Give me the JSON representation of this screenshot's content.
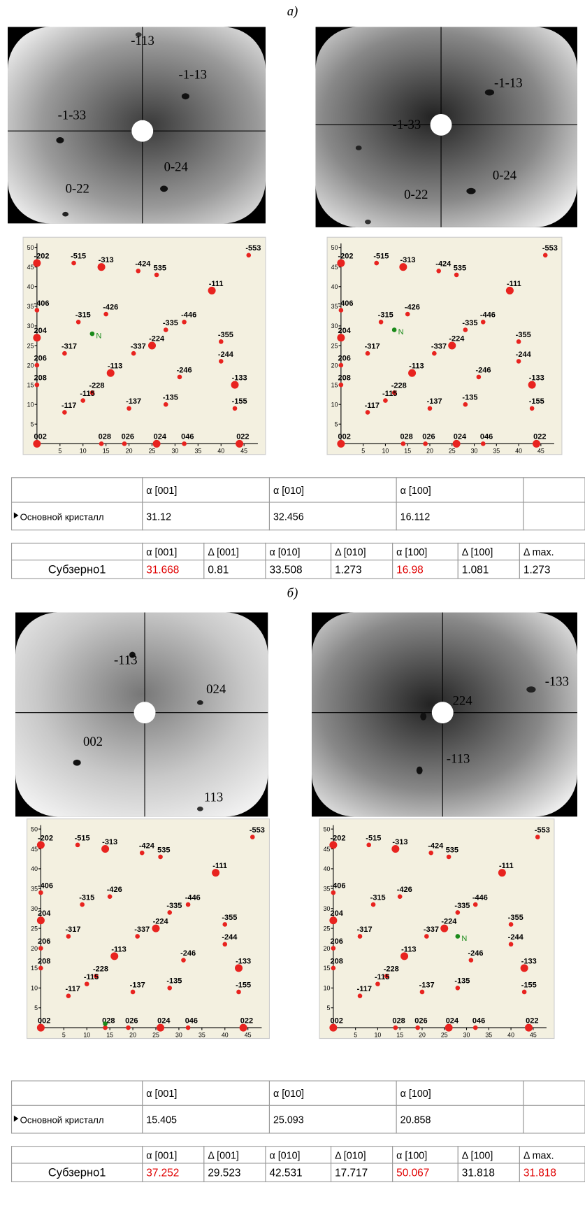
{
  "panels": [
    {
      "label": "а)",
      "patterns": [
        {
          "labels": [
            "-113",
            "-1-13",
            "-1-33",
            "0-24",
            "0-22"
          ]
        },
        {
          "labels": [
            "-1-13",
            "-1-33",
            "0-24",
            "0-22"
          ]
        }
      ],
      "plots": [
        {
          "marker": {
            "label": "N",
            "x": 12,
            "y": 28
          }
        },
        {
          "marker": {
            "label": "N",
            "x": 12,
            "y": 29
          }
        }
      ],
      "crystal_table": {
        "headers": [
          "α [001]",
          "α [010]",
          "α [100]"
        ],
        "row_label": "Основной кристалл",
        "values": [
          31.12,
          32.456,
          16.112
        ]
      },
      "subgrain_table": {
        "headers": [
          "α [001]",
          "Δ [001]",
          "α [010]",
          "Δ [010]",
          "α [100]",
          "Δ [100]",
          "Δ max."
        ],
        "row_label": "Субзерно1",
        "values": [
          31.668,
          0.81,
          33.508,
          1.273,
          16.98,
          1.081,
          1.273
        ],
        "colors": [
          "#e00000",
          "#000000",
          "#000000",
          "#000000",
          "#e00000",
          "#000000",
          "#000000"
        ]
      }
    },
    {
      "label": "б)",
      "patterns": [
        {
          "labels": [
            "-113",
            "024",
            "002",
            "113"
          ]
        },
        {
          "labels": [
            "-133",
            "224",
            "-113"
          ]
        }
      ],
      "plots": [
        {
          "marker": {
            "x": 14,
            "y": 1
          }
        },
        {
          "marker": {
            "label": "N",
            "x": 28,
            "y": 23
          }
        }
      ],
      "crystal_table": {
        "headers": [
          "α [001]",
          "α [010]",
          "α [100]"
        ],
        "row_label": "Основной кристалл",
        "values": [
          15.405,
          25.093,
          20.858
        ]
      },
      "subgrain_table": {
        "headers": [
          "α [001]",
          "Δ [001]",
          "α [010]",
          "Δ [010]",
          "α [100]",
          "Δ [100]",
          "Δ max."
        ],
        "row_label": "Субзерно1",
        "values": [
          37.252,
          29.523,
          42.531,
          17.717,
          50.067,
          31.818,
          31.818
        ],
        "colors": [
          "#e00000",
          "#000000",
          "#000000",
          "#000000",
          "#e00000",
          "#000000",
          "#e00000"
        ]
      }
    }
  ],
  "index_plot": {
    "xlim": [
      0,
      48
    ],
    "ylim": [
      0,
      51
    ],
    "xticks": [
      5,
      10,
      15,
      20,
      25,
      30,
      35,
      40,
      45
    ],
    "yticks": [
      5,
      10,
      15,
      20,
      25,
      30,
      35,
      40,
      45,
      50
    ],
    "point_color": "#e8231f",
    "marker_color": "#1a8a1a",
    "points": [
      {
        "label": "-202",
        "x": 0,
        "y": 46,
        "big": true
      },
      {
        "label": "-515",
        "x": 8,
        "y": 46
      },
      {
        "label": "-313",
        "x": 14,
        "y": 45,
        "big": true
      },
      {
        "label": "-424",
        "x": 22,
        "y": 44
      },
      {
        "label": "535",
        "x": 26,
        "y": 43
      },
      {
        "label": "-553",
        "x": 46,
        "y": 48
      },
      {
        "label": "-111",
        "x": 38,
        "y": 39,
        "big": true
      },
      {
        "label": "-406",
        "x": 0,
        "y": 34
      },
      {
        "label": "-426",
        "x": 15,
        "y": 33
      },
      {
        "label": "-315",
        "x": 9,
        "y": 31
      },
      {
        "label": "-446",
        "x": 32,
        "y": 31
      },
      {
        "label": "-335",
        "x": 28,
        "y": 29
      },
      {
        "label": "204",
        "x": 0,
        "y": 27,
        "big": true
      },
      {
        "label": "-224",
        "x": 25,
        "y": 25,
        "big": true
      },
      {
        "label": "-355",
        "x": 40,
        "y": 26
      },
      {
        "label": "-317",
        "x": 6,
        "y": 23
      },
      {
        "label": "-337",
        "x": 21,
        "y": 23
      },
      {
        "label": "-244",
        "x": 40,
        "y": 21
      },
      {
        "label": "206",
        "x": 0,
        "y": 20
      },
      {
        "label": "-113",
        "x": 16,
        "y": 18,
        "big": true
      },
      {
        "label": "-246",
        "x": 31,
        "y": 17
      },
      {
        "label": "-133",
        "x": 43,
        "y": 15,
        "big": true
      },
      {
        "label": "208",
        "x": 0,
        "y": 15
      },
      {
        "label": "-228",
        "x": 12,
        "y": 13
      },
      {
        "label": "-115",
        "x": 10,
        "y": 11
      },
      {
        "label": "-135",
        "x": 28,
        "y": 10
      },
      {
        "label": "-155",
        "x": 43,
        "y": 9
      },
      {
        "label": "-117",
        "x": 6,
        "y": 8
      },
      {
        "label": "-137",
        "x": 20,
        "y": 9
      },
      {
        "label": "002",
        "x": 0,
        "y": 0,
        "big": true
      },
      {
        "label": "028",
        "x": 14,
        "y": 0
      },
      {
        "label": "026",
        "x": 19,
        "y": 0
      },
      {
        "label": "024",
        "x": 26,
        "y": 0,
        "big": true
      },
      {
        "label": "046",
        "x": 32,
        "y": 0
      },
      {
        "label": "022",
        "x": 44,
        "y": 0,
        "big": true
      }
    ]
  }
}
